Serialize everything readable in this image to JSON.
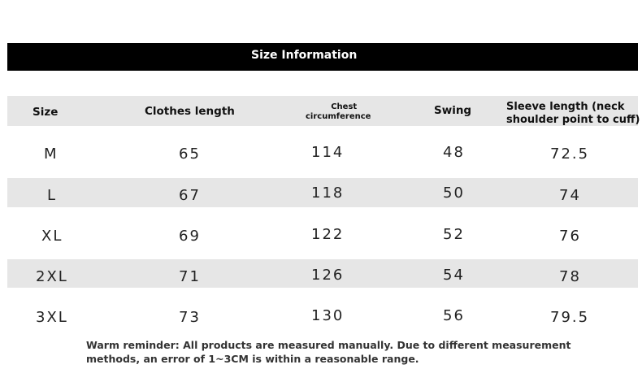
{
  "title": "Size Information",
  "headers": {
    "size": "Size",
    "clothes_length": "Clothes length",
    "chest_line1": "Chest",
    "chest_line2": "circumference",
    "swing": "Swing",
    "sleeve_line1": "Sleeve length (neck",
    "sleeve_line2": "shoulder point to cuff)"
  },
  "rows": [
    {
      "size": "M",
      "clothes_length": "65",
      "chest": "114",
      "swing": "48",
      "sleeve": "72.5"
    },
    {
      "size": "L",
      "clothes_length": "67",
      "chest": "118",
      "swing": "50",
      "sleeve": "74"
    },
    {
      "size": "XL",
      "clothes_length": "69",
      "chest": "122",
      "swing": "52",
      "sleeve": "76"
    },
    {
      "size": "2XL",
      "clothes_length": "71",
      "chest": "126",
      "swing": "54",
      "sleeve": "78"
    },
    {
      "size": "3XL",
      "clothes_length": "73",
      "chest": "130",
      "swing": "56",
      "sleeve": "79.5"
    }
  ],
  "note": {
    "line1": "Warm reminder: All products are measured manually. Due to different measurement",
    "line2": "methods, an error of 1~3CM is within a reasonable range."
  }
}
